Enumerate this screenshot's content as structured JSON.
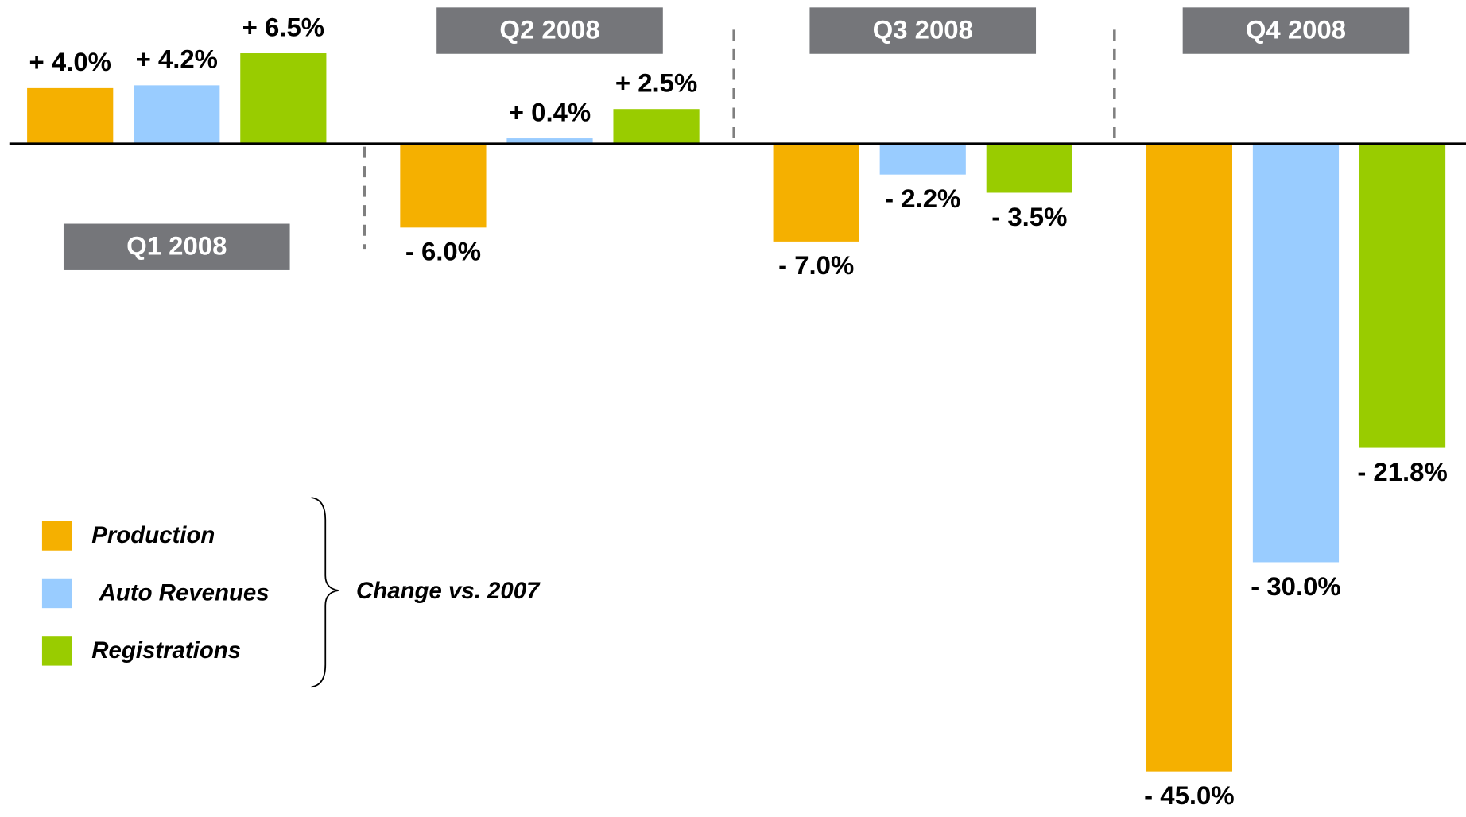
{
  "chart_data": {
    "type": "bar",
    "categories": [
      "Q1 2008",
      "Q2 2008",
      "Q3 2008",
      "Q4 2008"
    ],
    "series": [
      {
        "name": "Production",
        "color": "#f5b000",
        "values": [
          4.0,
          -6.0,
          -7.0,
          -45.0
        ],
        "value_labels": [
          "+ 4.0%",
          "- 6.0%",
          "- 7.0%",
          "- 45.0%"
        ]
      },
      {
        "name": "Auto Revenues",
        "color": "#99ccff",
        "values": [
          4.2,
          0.4,
          -2.2,
          -30.0
        ],
        "value_labels": [
          "+ 4.2%",
          "+ 0.4%",
          "- 2.2%",
          "- 30.0%"
        ]
      },
      {
        "name": "Registrations",
        "color": "#99cc00",
        "values": [
          6.5,
          2.5,
          -3.5,
          -21.8
        ],
        "value_labels": [
          "+ 6.5%",
          "+ 2.5%",
          "- 3.5%",
          "- 21.8%"
        ]
      }
    ],
    "annotation": "Change vs. 2007"
  }
}
